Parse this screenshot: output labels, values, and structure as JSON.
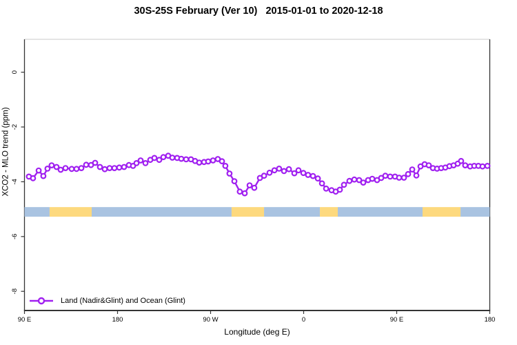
{
  "title": "30S-25S February (Ver 10)   2015-01-01 to 2020-12-18",
  "legend": {
    "label": "Land (Nadir&Glint) and Ocean (Glint)"
  },
  "colors": {
    "series": "#A020F0",
    "marker_fill": "#ffffff",
    "bar_ocean": "#a9c3e1",
    "bar_land": "#fdd97e",
    "axis": "#333333",
    "box_top": "#c9c9c9",
    "text": "#000000"
  },
  "chart_data": {
    "type": "line",
    "title": "30S-25S February (Ver 10)   2015-01-01 to 2020-12-18",
    "xlabel": "Longitude (deg E)",
    "ylabel": "XCO2 - MLO trend (ppm)",
    "xlim": [
      90,
      540
    ],
    "ylim": [
      -8.7,
      1.2
    ],
    "grid": false,
    "legend_position": "bottom-left inside plot",
    "x_axis_note": "longitude plotted continuously eastward: 90E, 180, 90W, 0, 90E, 180",
    "x_ticks": [
      {
        "x": 90,
        "label": "90 E"
      },
      {
        "x": 180,
        "label": "180"
      },
      {
        "x": 270,
        "label": "90 W"
      },
      {
        "x": 360,
        "label": "0"
      },
      {
        "x": 450,
        "label": "90 E"
      },
      {
        "x": 540,
        "label": "180"
      }
    ],
    "y_ticks": [
      {
        "y": 0,
        "label": "0"
      },
      {
        "y": -2,
        "label": "-2"
      },
      {
        "y": -4,
        "label": "-4"
      },
      {
        "y": -6,
        "label": "-6"
      },
      {
        "y": -8,
        "label": "-8"
      }
    ],
    "series": [
      {
        "name": "Land (Nadir&Glint) and Ocean (Glint)",
        "color": "#A020F0",
        "marker": "open-circle",
        "points": [
          [
            94.3,
            -3.81
          ],
          [
            98.3,
            -3.87
          ],
          [
            103.7,
            -3.59
          ],
          [
            108.3,
            -3.79
          ],
          [
            112.3,
            -3.52
          ],
          [
            116.3,
            -3.4
          ],
          [
            121.0,
            -3.46
          ],
          [
            125.0,
            -3.56
          ],
          [
            129.7,
            -3.5
          ],
          [
            135.7,
            -3.53
          ],
          [
            140.3,
            -3.53
          ],
          [
            145.0,
            -3.5
          ],
          [
            149.7,
            -3.38
          ],
          [
            154.3,
            -3.39
          ],
          [
            158.3,
            -3.31
          ],
          [
            163.0,
            -3.46
          ],
          [
            167.7,
            -3.54
          ],
          [
            172.3,
            -3.5
          ],
          [
            177.0,
            -3.5
          ],
          [
            181.7,
            -3.48
          ],
          [
            186.3,
            -3.46
          ],
          [
            191.0,
            -3.39
          ],
          [
            195.0,
            -3.42
          ],
          [
            198.3,
            -3.32
          ],
          [
            202.3,
            -3.22
          ],
          [
            207.0,
            -3.32
          ],
          [
            211.7,
            -3.2
          ],
          [
            215.7,
            -3.13
          ],
          [
            220.3,
            -3.2
          ],
          [
            224.3,
            -3.1
          ],
          [
            229.0,
            -3.05
          ],
          [
            233.0,
            -3.12
          ],
          [
            237.7,
            -3.13
          ],
          [
            241.7,
            -3.16
          ],
          [
            246.3,
            -3.18
          ],
          [
            251.0,
            -3.18
          ],
          [
            255.0,
            -3.24
          ],
          [
            259.0,
            -3.3
          ],
          [
            263.7,
            -3.28
          ],
          [
            267.7,
            -3.26
          ],
          [
            272.3,
            -3.22
          ],
          [
            277.0,
            -3.17
          ],
          [
            281.0,
            -3.25
          ],
          [
            284.3,
            -3.42
          ],
          [
            288.3,
            -3.7
          ],
          [
            293.0,
            -3.98
          ],
          [
            298.3,
            -4.36
          ],
          [
            303.0,
            -4.42
          ],
          [
            307.7,
            -4.13
          ],
          [
            312.3,
            -4.22
          ],
          [
            317.7,
            -3.86
          ],
          [
            321.7,
            -3.78
          ],
          [
            327.0,
            -3.67
          ],
          [
            331.7,
            -3.58
          ],
          [
            336.3,
            -3.52
          ],
          [
            341.0,
            -3.61
          ],
          [
            345.7,
            -3.54
          ],
          [
            351.0,
            -3.69
          ],
          [
            355.0,
            -3.58
          ],
          [
            359.7,
            -3.68
          ],
          [
            364.3,
            -3.75
          ],
          [
            369.0,
            -3.79
          ],
          [
            373.7,
            -3.88
          ],
          [
            377.7,
            -4.06
          ],
          [
            381.7,
            -4.25
          ],
          [
            387.0,
            -4.31
          ],
          [
            391.0,
            -4.36
          ],
          [
            395.0,
            -4.29
          ],
          [
            399.0,
            -4.11
          ],
          [
            404.3,
            -3.97
          ],
          [
            409.0,
            -3.92
          ],
          [
            413.7,
            -3.94
          ],
          [
            417.7,
            -4.03
          ],
          [
            422.3,
            -3.94
          ],
          [
            426.3,
            -3.89
          ],
          [
            431.0,
            -3.94
          ],
          [
            435.0,
            -3.86
          ],
          [
            439.0,
            -3.78
          ],
          [
            443.7,
            -3.81
          ],
          [
            448.3,
            -3.81
          ],
          [
            452.3,
            -3.85
          ],
          [
            457.0,
            -3.85
          ],
          [
            461.0,
            -3.72
          ],
          [
            465.0,
            -3.55
          ],
          [
            469.0,
            -3.77
          ],
          [
            473.0,
            -3.44
          ],
          [
            477.0,
            -3.36
          ],
          [
            481.0,
            -3.4
          ],
          [
            485.0,
            -3.5
          ],
          [
            489.0,
            -3.52
          ],
          [
            493.0,
            -3.5
          ],
          [
            497.0,
            -3.48
          ],
          [
            501.0,
            -3.43
          ],
          [
            505.0,
            -3.4
          ],
          [
            509.0,
            -3.34
          ],
          [
            512.3,
            -3.24
          ],
          [
            516.3,
            -3.4
          ],
          [
            521.0,
            -3.44
          ],
          [
            525.0,
            -3.42
          ],
          [
            529.0,
            -3.42
          ],
          [
            533.0,
            -3.44
          ],
          [
            537.7,
            -3.42
          ]
        ]
      }
    ],
    "coverage_bar": {
      "y": -5.1,
      "thickness_ppm": 0.35,
      "segments": [
        {
          "from": 90.0,
          "to": 114.3,
          "type": "ocean"
        },
        {
          "from": 114.3,
          "to": 155.0,
          "type": "land"
        },
        {
          "from": 155.0,
          "to": 290.3,
          "type": "ocean"
        },
        {
          "from": 290.3,
          "to": 321.7,
          "type": "land"
        },
        {
          "from": 321.7,
          "to": 375.7,
          "type": "ocean"
        },
        {
          "from": 375.7,
          "to": 393.0,
          "type": "land"
        },
        {
          "from": 393.0,
          "to": 475.0,
          "type": "ocean"
        },
        {
          "from": 475.0,
          "to": 511.7,
          "type": "land"
        },
        {
          "from": 511.7,
          "to": 540.0,
          "type": "ocean"
        }
      ]
    }
  }
}
